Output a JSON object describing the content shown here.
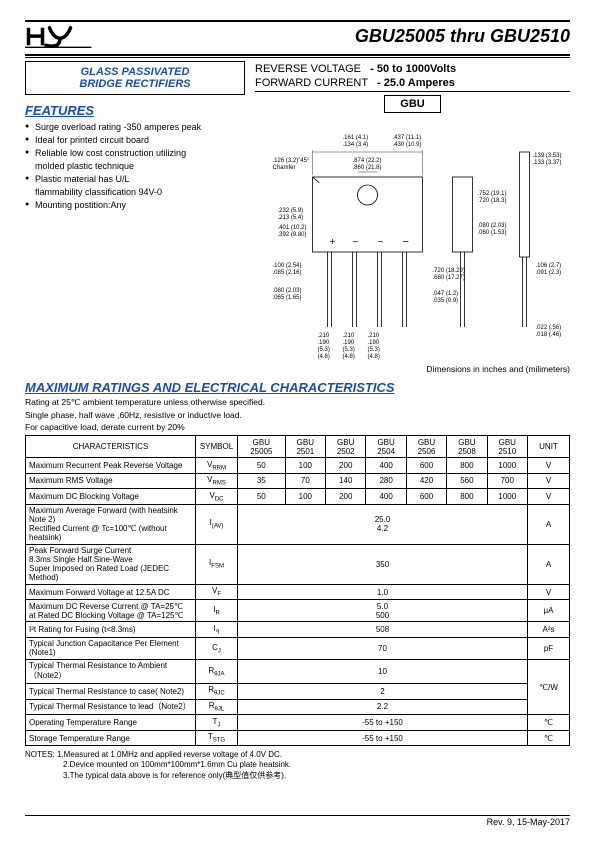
{
  "product_title": "GBU25005 thru GBU2510",
  "title_box": {
    "line1": "GLASS PASSIVATED",
    "line2": "BRIDGE RECTIFIERS"
  },
  "specs": {
    "rev_voltage_label": "REVERSE VOLTAGE",
    "rev_voltage_val": "- 50 to 1000Volts",
    "fwd_current_label": "FORWARD CURRENT",
    "fwd_current_val": "- 25.0 Amperes"
  },
  "features_hdr": "FEATURES",
  "features": [
    "Surge overload rating -350 amperes peak",
    "Ideal for printed circuit board",
    "Reliable low cost construction utilizing",
    "molded plastic technique",
    "Plastic material has U/L",
    "flammability classification 94V-0",
    "Mounting postition:Any"
  ],
  "gbu_label": "GBU",
  "dim_note": "Dimensions in inches and (milimeters)",
  "section_hdr": "MAXIMUM RATINGS AND ELECTRICAL CHARACTERISTICS",
  "rating_notes": [
    "Rating at 25℃ ambient temperature unless otherwise specified.",
    "Single phase, half wave ,60Hz, resistive or inductive load.",
    "For capacitive load, derate current by 20%"
  ],
  "table": {
    "columns": [
      "CHARACTERISTICS",
      "SYMBOL",
      "GBU 25005",
      "GBU 2501",
      "GBU 2502",
      "GBU 2504",
      "GBU 2506",
      "GBU 2508",
      "GBU 2510",
      "UNIT"
    ],
    "rows": [
      {
        "c": "Maximum Recurrent Peak Reverse Voltage",
        "s": "VRRM",
        "v": [
          "50",
          "100",
          "200",
          "400",
          "600",
          "800",
          "1000"
        ],
        "u": "V"
      },
      {
        "c": "Maximum RMS Voltage",
        "s": "VRMS",
        "v": [
          "35",
          "70",
          "140",
          "280",
          "420",
          "560",
          "700"
        ],
        "u": "V"
      },
      {
        "c": "Maximum DC Blocking Voltage",
        "s": "VDC",
        "v": [
          "50",
          "100",
          "200",
          "400",
          "600",
          "800",
          "1000"
        ],
        "u": "V"
      },
      {
        "c": "Maximum Average Forward (with heatsink Note 2)<br>Rectified Current @ Tc=100℃ (without heatsink)",
        "s": "I(AV)",
        "span": "25.0<br>4.2",
        "u": "A"
      },
      {
        "c": "Peak Forward Surge Current<br>8.3ms Single Half Sine-Wave<br>Super Imposed on Rated Load (JEDEC Method)",
        "s": "IFSM",
        "span": "350",
        "u": "A"
      },
      {
        "c": "Maximum Forward Voltage at 12.5A DC",
        "s": "VF",
        "span": "1.0",
        "u": "V"
      },
      {
        "c": "Maximum DC Reverse Current @ TA=25℃<br>at Rated DC Blocking Voltage @ TA=125℃",
        "s": "IR",
        "span": "5.0<br>500",
        "u": "μA"
      },
      {
        "c": "I²t Rating for Fusing (t<8.3ms)",
        "s": "I²t",
        "span": "508",
        "u": "A²s"
      },
      {
        "c": "Typical Junction Capacitance Per Element (Note1)",
        "s": "CJ",
        "span": "70",
        "u": "pF"
      },
      {
        "c": "Typical Thermal Resistance to Ambient（Note2）",
        "s": "RθJA",
        "span": "10",
        "u": "℃/W",
        "rowspan_u": 3
      },
      {
        "c": "Typical Thermal Resistance to case( Note2)",
        "s": "RθJC",
        "span": "2"
      },
      {
        "c": "Typical Thermal Resistance to lead（Note2）",
        "s": "RθJL",
        "span": "2.2"
      },
      {
        "c": "Operating Temperature Range",
        "s": "TJ",
        "span": "-55 to +150",
        "u": "℃"
      },
      {
        "c": "Storage Temperature Range",
        "s": "TSTG",
        "span": "-55 to +150",
        "u": "℃"
      }
    ]
  },
  "footnotes": [
    "NOTES: 1.Measured at 1.0MHz and applied reverse voltage of 4.0V DC.",
    "2.Device mounted on 100mm*100mm*1.6mm Cu plate heatsink.",
    "3.The typical data above is for reference only(典型值仅供参考)."
  ],
  "rev": "Rev. 9, 15-May-2017",
  "colors": {
    "blue": "#1a4db3"
  }
}
